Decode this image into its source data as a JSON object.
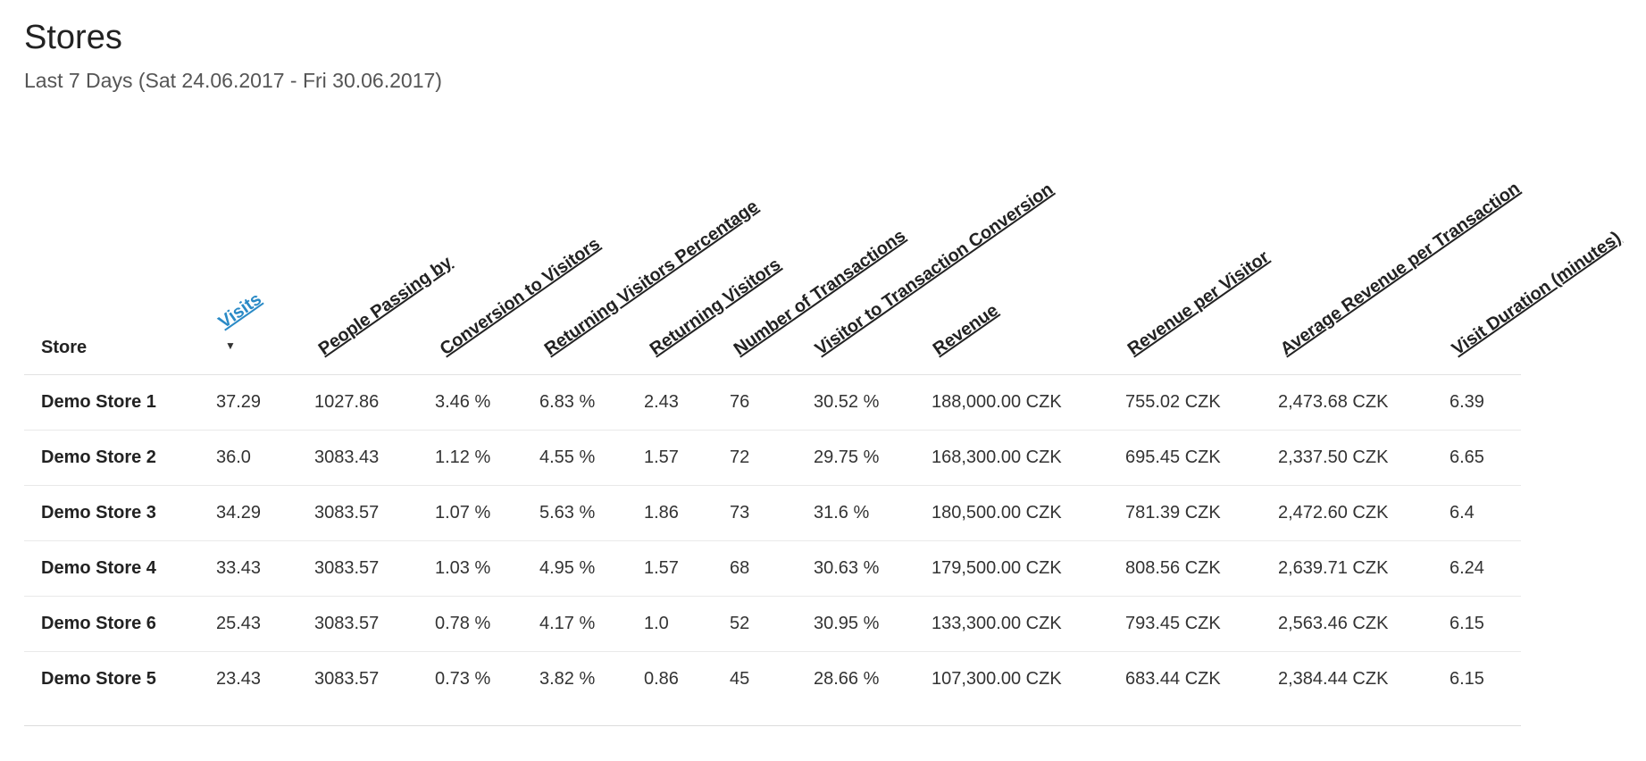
{
  "page": {
    "title": "Stores",
    "subtitle": "Last 7 Days (Sat 24.06.2017 - Fri 30.06.2017)"
  },
  "table": {
    "store_header": "Store",
    "sort_indicator": "▼",
    "headers": [
      "Visits",
      "People Passing by",
      "Conversion to Visitors",
      "Returning Visitors Percentage",
      "Returning Visitors",
      "Number of Transactions",
      "Visitor to Transaction Conversion",
      "Revenue",
      "Revenue per Visitor",
      "Average Revenue per Transaction",
      "Visit Duration (minutes)"
    ],
    "rows": [
      [
        "Demo Store 1",
        "37.29",
        "1027.86",
        "3.46 %",
        "6.83 %",
        "2.43",
        "76",
        "30.52 %",
        "188,000.00 CZK",
        "755.02 CZK",
        "2,473.68 CZK",
        "6.39"
      ],
      [
        "Demo Store 2",
        "36.0",
        "3083.43",
        "1.12 %",
        "4.55 %",
        "1.57",
        "72",
        "29.75 %",
        "168,300.00 CZK",
        "695.45 CZK",
        "2,337.50 CZK",
        "6.65"
      ],
      [
        "Demo Store 3",
        "34.29",
        "3083.57",
        "1.07 %",
        "5.63 %",
        "1.86",
        "73",
        "31.6 %",
        "180,500.00 CZK",
        "781.39 CZK",
        "2,472.60 CZK",
        "6.4"
      ],
      [
        "Demo Store 4",
        "33.43",
        "3083.57",
        "1.03 %",
        "4.95 %",
        "1.57",
        "68",
        "30.63 %",
        "179,500.00 CZK",
        "808.56 CZK",
        "2,639.71 CZK",
        "6.24"
      ],
      [
        "Demo Store 6",
        "25.43",
        "3083.57",
        "0.78 %",
        "4.17 %",
        "1.0",
        "52",
        "30.95 %",
        "133,300.00 CZK",
        "793.45 CZK",
        "2,563.46 CZK",
        "6.15"
      ],
      [
        "Demo Store 5",
        "23.43",
        "3083.57",
        "0.73 %",
        "3.82 %",
        "0.86",
        "45",
        "28.66 %",
        "107,300.00 CZK",
        "683.44 CZK",
        "2,384.44 CZK",
        "6.15"
      ]
    ]
  },
  "colors": {
    "sorted_header": "#2a8ac6",
    "text": "#333333"
  }
}
